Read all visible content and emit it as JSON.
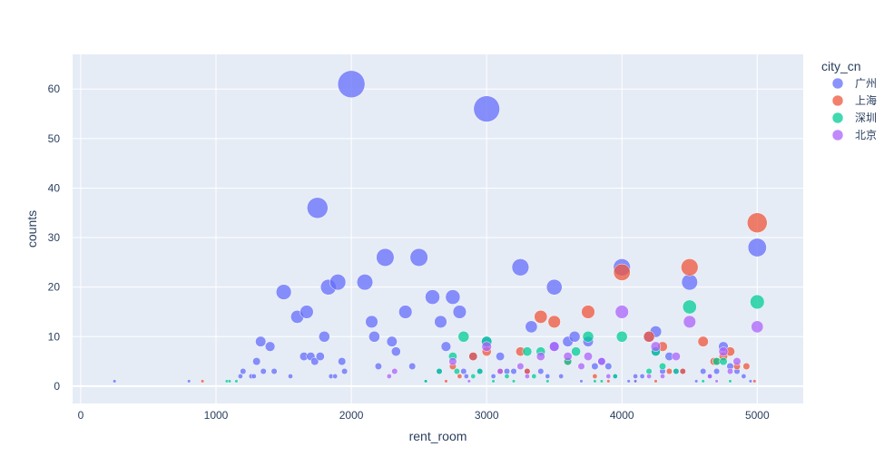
{
  "chart_data": {
    "type": "scatter",
    "xlabel": "rent_room",
    "ylabel": "counts",
    "xlim": [
      -60,
      5340
    ],
    "ylim": [
      -3.5,
      67
    ],
    "x_ticks": [
      0,
      1000,
      2000,
      3000,
      4000,
      5000
    ],
    "x_tick_labels": [
      "0",
      "1000",
      "2000",
      "3000",
      "4000",
      "5000"
    ],
    "y_ticks": [
      0,
      10,
      20,
      30,
      40,
      50,
      60
    ],
    "y_tick_labels": [
      "0",
      "10",
      "20",
      "30",
      "40",
      "50",
      "60"
    ],
    "grid": true,
    "legend_title": "city_cn",
    "legend_position": "right",
    "background": "#e5ecf6",
    "series": [
      {
        "name": "广州",
        "color": "#636efa",
        "points": [
          [
            250,
            1
          ],
          [
            800,
            1
          ],
          [
            1180,
            2
          ],
          [
            1200,
            3
          ],
          [
            1260,
            2
          ],
          [
            1280,
            2
          ],
          [
            1300,
            5
          ],
          [
            1330,
            9
          ],
          [
            1350,
            3
          ],
          [
            1400,
            8
          ],
          [
            1430,
            3
          ],
          [
            1500,
            19
          ],
          [
            1550,
            2
          ],
          [
            1600,
            14
          ],
          [
            1650,
            6
          ],
          [
            1670,
            15
          ],
          [
            1700,
            6
          ],
          [
            1730,
            5
          ],
          [
            1750,
            36
          ],
          [
            1770,
            6
          ],
          [
            1800,
            10
          ],
          [
            1830,
            20
          ],
          [
            1850,
            2
          ],
          [
            1880,
            2
          ],
          [
            1900,
            21
          ],
          [
            1930,
            5
          ],
          [
            1950,
            3
          ],
          [
            2000,
            61
          ],
          [
            2100,
            21
          ],
          [
            2150,
            13
          ],
          [
            2170,
            10
          ],
          [
            2200,
            4
          ],
          [
            2250,
            26
          ],
          [
            2300,
            9
          ],
          [
            2330,
            7
          ],
          [
            2400,
            15
          ],
          [
            2450,
            4
          ],
          [
            2500,
            26
          ],
          [
            2550,
            1
          ],
          [
            2600,
            18
          ],
          [
            2650,
            3
          ],
          [
            2660,
            13
          ],
          [
            2700,
            8
          ],
          [
            2750,
            18
          ],
          [
            2800,
            15
          ],
          [
            2830,
            3
          ],
          [
            2850,
            2
          ],
          [
            2900,
            6
          ],
          [
            2950,
            3
          ],
          [
            3000,
            56
          ],
          [
            3000,
            9
          ],
          [
            3050,
            2
          ],
          [
            3100,
            6
          ],
          [
            3150,
            3
          ],
          [
            3200,
            3
          ],
          [
            3250,
            24
          ],
          [
            3300,
            3
          ],
          [
            3330,
            12
          ],
          [
            3400,
            3
          ],
          [
            3450,
            2
          ],
          [
            3500,
            20
          ],
          [
            3500,
            8
          ],
          [
            3550,
            2
          ],
          [
            3600,
            9
          ],
          [
            3650,
            10
          ],
          [
            3700,
            1
          ],
          [
            3750,
            9
          ],
          [
            3800,
            4
          ],
          [
            3850,
            5
          ],
          [
            3900,
            4
          ],
          [
            3950,
            2
          ],
          [
            4000,
            24
          ],
          [
            4050,
            1
          ],
          [
            4100,
            2
          ],
          [
            4150,
            2
          ],
          [
            4200,
            10
          ],
          [
            4250,
            11
          ],
          [
            4250,
            7
          ],
          [
            4300,
            3
          ],
          [
            4350,
            6
          ],
          [
            4400,
            3
          ],
          [
            4450,
            3
          ],
          [
            4500,
            21
          ],
          [
            4550,
            1
          ],
          [
            4600,
            3
          ],
          [
            4650,
            2
          ],
          [
            4700,
            3
          ],
          [
            4750,
            8
          ],
          [
            4800,
            4
          ],
          [
            4850,
            3
          ],
          [
            4900,
            2
          ],
          [
            4950,
            1
          ],
          [
            5000,
            28
          ]
        ]
      },
      {
        "name": "上海",
        "color": "#ef553b",
        "points": [
          [
            900,
            1
          ],
          [
            2700,
            1
          ],
          [
            2750,
            4
          ],
          [
            2800,
            2
          ],
          [
            2900,
            6
          ],
          [
            3000,
            7
          ],
          [
            3100,
            3
          ],
          [
            3250,
            7
          ],
          [
            3300,
            3
          ],
          [
            3400,
            14
          ],
          [
            3500,
            13
          ],
          [
            3600,
            5
          ],
          [
            3750,
            15
          ],
          [
            3800,
            2
          ],
          [
            3900,
            1
          ],
          [
            4000,
            23
          ],
          [
            4100,
            1
          ],
          [
            4200,
            10
          ],
          [
            4250,
            1
          ],
          [
            4300,
            8
          ],
          [
            4350,
            3
          ],
          [
            4450,
            3
          ],
          [
            4500,
            24
          ],
          [
            4600,
            9
          ],
          [
            4680,
            5
          ],
          [
            4700,
            5
          ],
          [
            4750,
            6
          ],
          [
            4800,
            7
          ],
          [
            4850,
            4
          ],
          [
            4920,
            4
          ],
          [
            4980,
            1
          ],
          [
            5000,
            33
          ]
        ]
      },
      {
        "name": "深圳",
        "color": "#00cc96",
        "points": [
          [
            1080,
            1
          ],
          [
            1100,
            1
          ],
          [
            1150,
            1
          ],
          [
            2550,
            1
          ],
          [
            2650,
            3
          ],
          [
            2750,
            6
          ],
          [
            2780,
            3
          ],
          [
            2830,
            10
          ],
          [
            2900,
            2
          ],
          [
            2950,
            3
          ],
          [
            3000,
            9
          ],
          [
            3050,
            1
          ],
          [
            3150,
            2
          ],
          [
            3200,
            1
          ],
          [
            3300,
            7
          ],
          [
            3350,
            2
          ],
          [
            3400,
            7
          ],
          [
            3450,
            1
          ],
          [
            3600,
            5
          ],
          [
            3660,
            7
          ],
          [
            3750,
            10
          ],
          [
            3800,
            1
          ],
          [
            3850,
            1
          ],
          [
            3950,
            2
          ],
          [
            4000,
            10
          ],
          [
            4100,
            1
          ],
          [
            4200,
            3
          ],
          [
            4250,
            7
          ],
          [
            4300,
            4
          ],
          [
            4400,
            3
          ],
          [
            4500,
            16
          ],
          [
            4600,
            1
          ],
          [
            4700,
            5
          ],
          [
            4750,
            5
          ],
          [
            4800,
            1
          ],
          [
            5000,
            17
          ]
        ]
      },
      {
        "name": "北京",
        "color": "#ab63fa",
        "points": [
          [
            2280,
            2
          ],
          [
            2320,
            3
          ],
          [
            2750,
            5
          ],
          [
            2870,
            1
          ],
          [
            3000,
            8
          ],
          [
            3100,
            3
          ],
          [
            3250,
            4
          ],
          [
            3300,
            2
          ],
          [
            3400,
            6
          ],
          [
            3500,
            8
          ],
          [
            3600,
            6
          ],
          [
            3700,
            4
          ],
          [
            3750,
            6
          ],
          [
            3850,
            5
          ],
          [
            3900,
            2
          ],
          [
            4000,
            15
          ],
          [
            4100,
            1
          ],
          [
            4200,
            2
          ],
          [
            4250,
            8
          ],
          [
            4300,
            2
          ],
          [
            4400,
            6
          ],
          [
            4500,
            13
          ],
          [
            4650,
            2
          ],
          [
            4700,
            1
          ],
          [
            4750,
            7
          ],
          [
            4800,
            3
          ],
          [
            4850,
            5
          ],
          [
            5000,
            12
          ]
        ]
      }
    ]
  }
}
